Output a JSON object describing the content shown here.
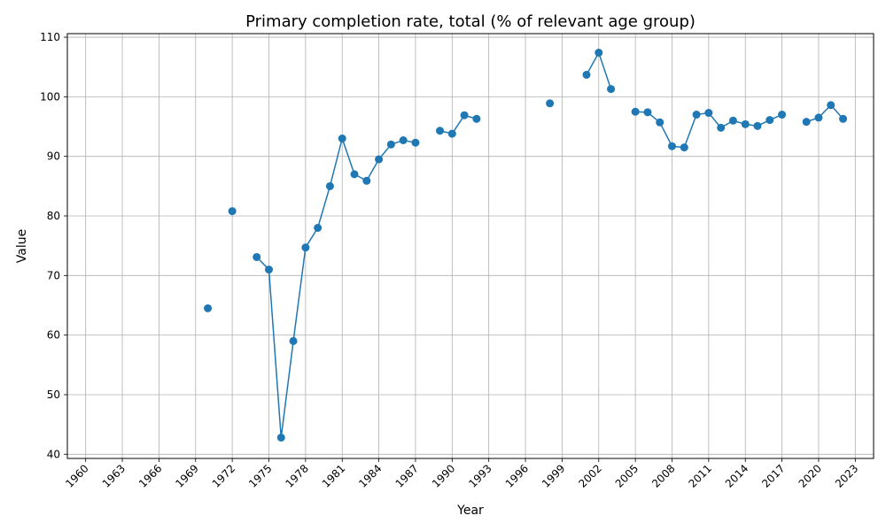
{
  "chart_data": {
    "type": "line",
    "title": "Primary completion rate, total (% of relevant age group)",
    "xlabel": "Year",
    "ylabel": "Value",
    "xlim": [
      1958.5,
      2024.5
    ],
    "ylim": [
      39.3,
      110.6
    ],
    "x_ticks": [
      1960,
      1963,
      1966,
      1969,
      1972,
      1975,
      1978,
      1981,
      1984,
      1987,
      1990,
      1993,
      1996,
      1999,
      2002,
      2005,
      2008,
      2011,
      2014,
      2017,
      2020,
      2023
    ],
    "y_ticks": [
      40,
      50,
      60,
      70,
      80,
      90,
      100,
      110
    ],
    "grid": true,
    "series_color": "#1f77b4",
    "series": [
      {
        "x": [
          1960,
          1961,
          1962,
          1963,
          1964,
          1965,
          1966,
          1967,
          1968,
          1969,
          1970,
          1971,
          1972,
          1973,
          1974,
          1975,
          1976,
          1977,
          1978,
          1979,
          1980,
          1981,
          1982,
          1983,
          1984,
          1985,
          1986,
          1987,
          1988,
          1989,
          1990,
          1991,
          1992,
          1993,
          1994,
          1995,
          1996,
          1997,
          1998,
          1999,
          2000,
          2001,
          2002,
          2003,
          2004,
          2005,
          2006,
          2007,
          2008,
          2009,
          2010,
          2011,
          2012,
          2013,
          2014,
          2015,
          2016,
          2017,
          2018,
          2019,
          2020,
          2021,
          2022
        ],
        "values": [
          null,
          null,
          null,
          null,
          null,
          null,
          null,
          null,
          null,
          null,
          64.5,
          null,
          80.8,
          null,
          73.1,
          71.0,
          42.8,
          59.0,
          74.7,
          78.0,
          85.0,
          93.0,
          87.0,
          85.9,
          89.5,
          92.0,
          92.7,
          92.3,
          null,
          94.3,
          93.8,
          96.9,
          96.3,
          null,
          null,
          null,
          null,
          null,
          98.9,
          null,
          null,
          103.7,
          107.4,
          101.3,
          null,
          97.5,
          97.4,
          95.7,
          91.7,
          91.5,
          97.0,
          97.3,
          94.8,
          96.0,
          95.4,
          95.1,
          96.1,
          97.0,
          null,
          95.8,
          96.5,
          98.6,
          96.3
        ]
      }
    ]
  }
}
